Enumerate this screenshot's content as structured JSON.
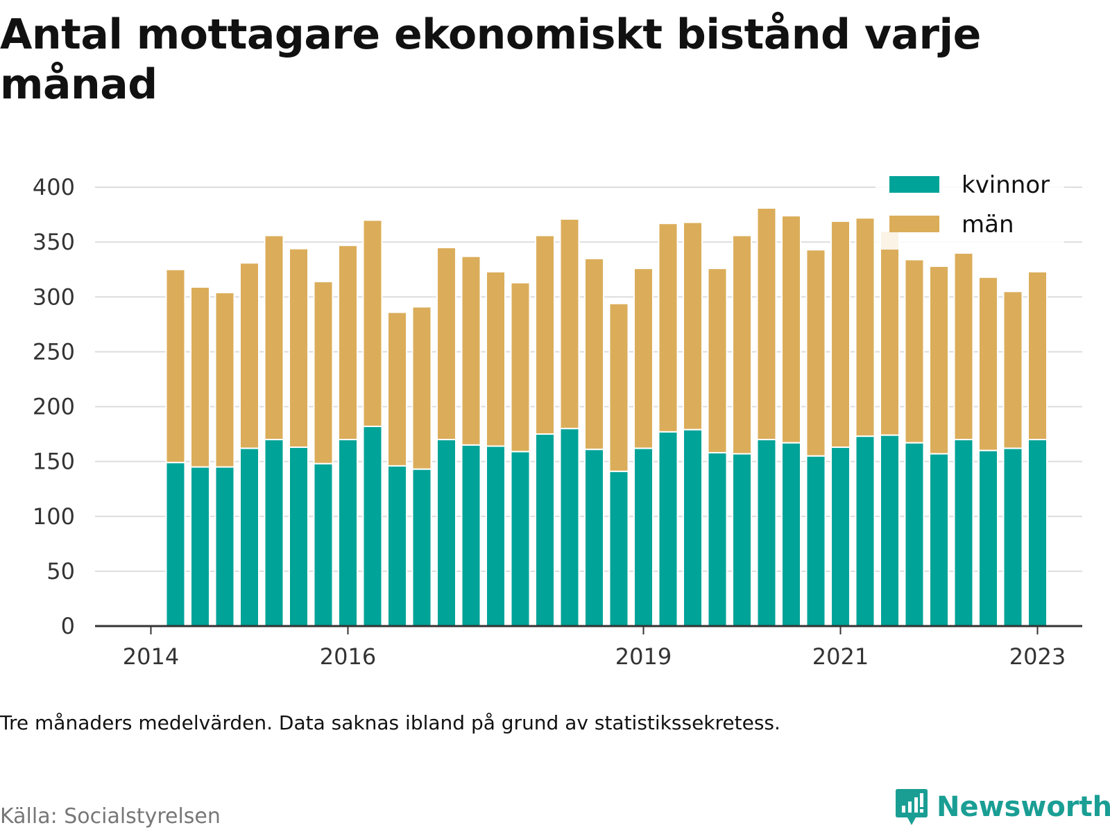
{
  "title": "Antal mottagare ekonomiskt bistånd varje månad",
  "note": "Tre månaders medelvärden. Data saknas ibland på grund av statistikssekretess.",
  "source": "Källa: Socialstyrelsen",
  "brand": "Newsworthy",
  "colors": {
    "kvinnor": "#00a398",
    "man": "#dbad5a",
    "grid": "#dddddd",
    "axis": "#333333",
    "brand": "#1a9e94"
  },
  "chart_data": {
    "type": "bar",
    "stacked": true,
    "x_ticks": [
      {
        "label": "2014",
        "pos": -1
      },
      {
        "label": "2016",
        "pos": 7
      },
      {
        "label": "2019",
        "pos": 19
      },
      {
        "label": "2021",
        "pos": 27
      },
      {
        "label": "2023",
        "pos": 35
      }
    ],
    "y_ticks": [
      0,
      50,
      100,
      150,
      200,
      250,
      300,
      350,
      400
    ],
    "ylim": [
      0,
      400
    ],
    "legend_position": "top-right",
    "series": [
      {
        "name": "kvinnor",
        "values": [
          149,
          145,
          145,
          162,
          170,
          163,
          148,
          170,
          182,
          146,
          143,
          170,
          165,
          164,
          159,
          175,
          180,
          161,
          141,
          162,
          177,
          179,
          158,
          157,
          170,
          167,
          155,
          163,
          173,
          174,
          167,
          157,
          170,
          160,
          162,
          170
        ]
      },
      {
        "name": "män",
        "values": [
          176,
          164,
          159,
          169,
          186,
          181,
          166,
          177,
          188,
          140,
          148,
          175,
          172,
          159,
          154,
          181,
          191,
          174,
          153,
          164,
          190,
          189,
          168,
          199,
          211,
          207,
          188,
          206,
          199,
          186,
          167,
          171,
          170,
          158,
          143,
          153
        ]
      }
    ]
  }
}
